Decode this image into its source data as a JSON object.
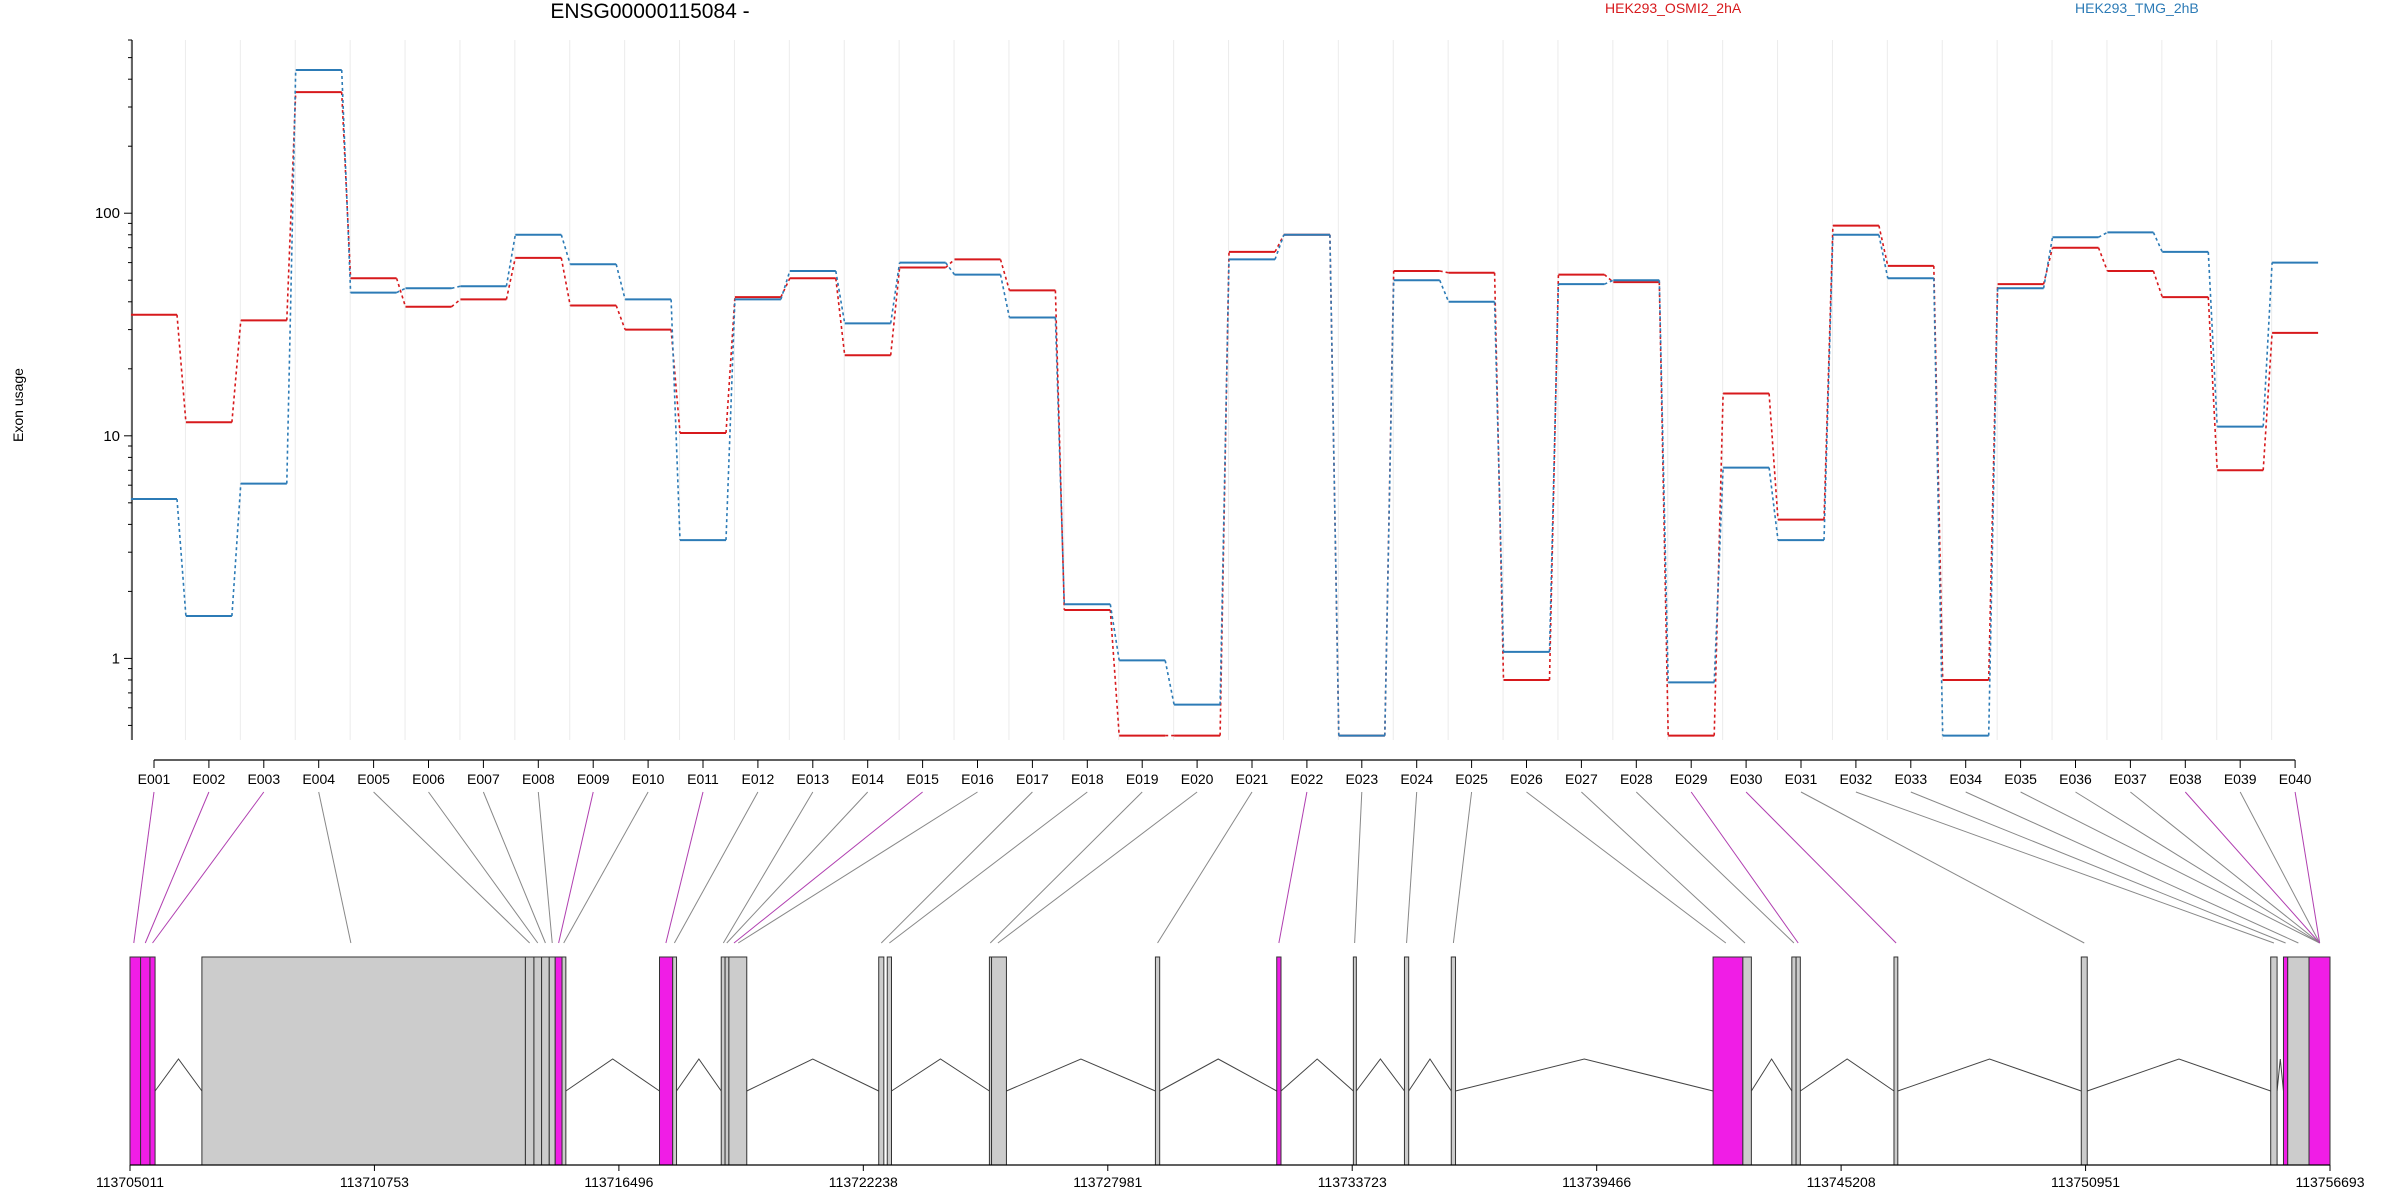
{
  "chart_data": {
    "type": "line",
    "title": "ENSG00000115084 -",
    "ylabel": "Exon usage",
    "yscale": "log",
    "ylim": [
      0.43,
      600
    ],
    "yticks": [
      1,
      10,
      100
    ],
    "ytick_labels": [
      "1",
      "10",
      "100"
    ],
    "categories": [
      "E001",
      "E002",
      "E003",
      "E004",
      "E005",
      "E006",
      "E007",
      "E008",
      "E009",
      "E010",
      "E011",
      "E012",
      "E013",
      "E014",
      "E015",
      "E016",
      "E017",
      "E018",
      "E019",
      "E020",
      "E021",
      "E022",
      "E023",
      "E024",
      "E025",
      "E026",
      "E027",
      "E028",
      "E029",
      "E030",
      "E031",
      "E032",
      "E033",
      "E034",
      "E035",
      "E036",
      "E037",
      "E038",
      "E039",
      "E040"
    ],
    "series": [
      {
        "name": "HEK293_OSMI2_2hA",
        "color": "#d7191c",
        "values": [
          35,
          11.5,
          33,
          350,
          51,
          38,
          41,
          63,
          38.5,
          30,
          10.3,
          42,
          51,
          23,
          57,
          62,
          45,
          1.65,
          0.45,
          0.45,
          67,
          80,
          0.45,
          55,
          54,
          0.8,
          53,
          49,
          0.45,
          15.5,
          4.2,
          88,
          58,
          0.8,
          48,
          70,
          55,
          42,
          7,
          29
        ]
      },
      {
        "name": "HEK293_TMG_2hB",
        "color": "#2c7bb6",
        "values": [
          5.2,
          1.55,
          6.1,
          440,
          44,
          46,
          47,
          80,
          59,
          41,
          3.4,
          41,
          55,
          32,
          60,
          53,
          34,
          1.75,
          0.98,
          0.62,
          62,
          80,
          0.45,
          50,
          40,
          1.07,
          48,
          50,
          0.78,
          7.2,
          3.4,
          80,
          51,
          0.45,
          46,
          78,
          82,
          67,
          11,
          60
        ]
      }
    ],
    "gene_model": {
      "genomic_axis_labels": [
        "113705011",
        "113710753",
        "113716496",
        "113722238",
        "113727981",
        "113733723",
        "113739466",
        "113745208",
        "113750951",
        "113756693"
      ],
      "coord_start": 113705011,
      "coord_end": 113756693,
      "exon_bins": [
        {
          "id": "E001",
          "start": 113705011,
          "end": 113705260,
          "highlight": true
        },
        {
          "id": "E002",
          "start": 113705260,
          "end": 113705480,
          "highlight": true
        },
        {
          "id": "E003",
          "start": 113705480,
          "end": 113705600,
          "highlight": true
        },
        {
          "id": "E004",
          "start": 113706700,
          "end": 113714300,
          "highlight": false
        },
        {
          "id": "E005",
          "start": 113714300,
          "end": 113714500,
          "highlight": false
        },
        {
          "id": "E006",
          "start": 113714500,
          "end": 113714680,
          "highlight": false
        },
        {
          "id": "E007",
          "start": 113714680,
          "end": 113714860,
          "highlight": false
        },
        {
          "id": "E008",
          "start": 113714860,
          "end": 113715000,
          "highlight": false
        },
        {
          "id": "E009",
          "start": 113715000,
          "end": 113715160,
          "highlight": true
        },
        {
          "id": "E010",
          "start": 113715160,
          "end": 113715250,
          "highlight": false
        },
        {
          "id": "E011",
          "start": 113717450,
          "end": 113717760,
          "highlight": true
        },
        {
          "id": "E012",
          "start": 113717760,
          "end": 113717850,
          "highlight": false
        },
        {
          "id": "E013",
          "start": 113718900,
          "end": 113718990,
          "highlight": false
        },
        {
          "id": "E014",
          "start": 113718990,
          "end": 113719080,
          "highlight": false
        },
        {
          "id": "E015",
          "start": 113719080,
          "end": 113719500,
          "highlight": false
        },
        {
          "id": "E016",
          "start": 113722600,
          "end": 113722720,
          "highlight": false
        },
        {
          "id": "E017",
          "start": 113722800,
          "end": 113722900,
          "highlight": false
        },
        {
          "id": "E018",
          "start": 113725200,
          "end": 113725250,
          "highlight": false
        },
        {
          "id": "E019",
          "start": 113725250,
          "end": 113725600,
          "highlight": false
        },
        {
          "id": "E020",
          "start": 113729100,
          "end": 113729200,
          "highlight": false
        },
        {
          "id": "E021",
          "start": 113731950,
          "end": 113732050,
          "highlight": true
        },
        {
          "id": "E022",
          "start": 113733750,
          "end": 113733820,
          "highlight": false
        },
        {
          "id": "E023",
          "start": 113734950,
          "end": 113735050,
          "highlight": false
        },
        {
          "id": "E024",
          "start": 113736050,
          "end": 113736150,
          "highlight": false
        },
        {
          "id": "E025",
          "start": 113742200,
          "end": 113742900,
          "highlight": true
        },
        {
          "id": "E026",
          "start": 113742900,
          "end": 113743100,
          "highlight": false
        },
        {
          "id": "E027",
          "start": 113744050,
          "end": 113744150,
          "highlight": false
        },
        {
          "id": "E028",
          "start": 113744150,
          "end": 113744250,
          "highlight": false
        },
        {
          "id": "E029",
          "start": 113746450,
          "end": 113746540,
          "highlight": false
        },
        {
          "id": "E030",
          "start": 113750850,
          "end": 113750990,
          "highlight": false
        },
        {
          "id": "E031",
          "start": 113755300,
          "end": 113755450,
          "highlight": false
        },
        {
          "id": "E032",
          "start": 113755600,
          "end": 113755700,
          "highlight": true
        },
        {
          "id": "E033",
          "start": 113755700,
          "end": 113756200,
          "highlight": false
        },
        {
          "id": "E034",
          "start": 113756200,
          "end": 113756693,
          "highlight": true
        }
      ],
      "exon_connections": [
        0,
        1,
        2,
        3,
        4,
        5,
        6,
        7,
        8,
        9,
        10,
        11,
        12,
        13,
        14,
        15,
        16,
        17,
        18,
        19,
        20,
        21,
        22,
        23,
        24,
        25,
        26,
        27,
        28,
        29,
        30,
        31,
        32,
        33,
        33,
        33,
        33,
        33,
        33,
        33
      ],
      "connection_targets": [
        113705100,
        113705370,
        113705540,
        113710200,
        113714400,
        113714590,
        113714770,
        113714930,
        113715080,
        113715200,
        113717600,
        113717800,
        113718950,
        113719030,
        113719200,
        113719300,
        113722660,
        113722850,
        113725220,
        113725400,
        113729150,
        113732000,
        113733780,
        113735000,
        113736100,
        113742500,
        113742950,
        113744100,
        113744200,
        113746500,
        113750920,
        113755375,
        113755650,
        113755950,
        113756450,
        113756450,
        113756450,
        113756450,
        113756450,
        113756450
      ],
      "connection_highlight": [
        true,
        true,
        true,
        false,
        false,
        false,
        false,
        false,
        true,
        false,
        true,
        false,
        false,
        false,
        true,
        false,
        false,
        false,
        false,
        false,
        false,
        true,
        false,
        false,
        false,
        false,
        false,
        false,
        true,
        true,
        false,
        false,
        false,
        false,
        false,
        false,
        false,
        true,
        false,
        true
      ]
    }
  }
}
